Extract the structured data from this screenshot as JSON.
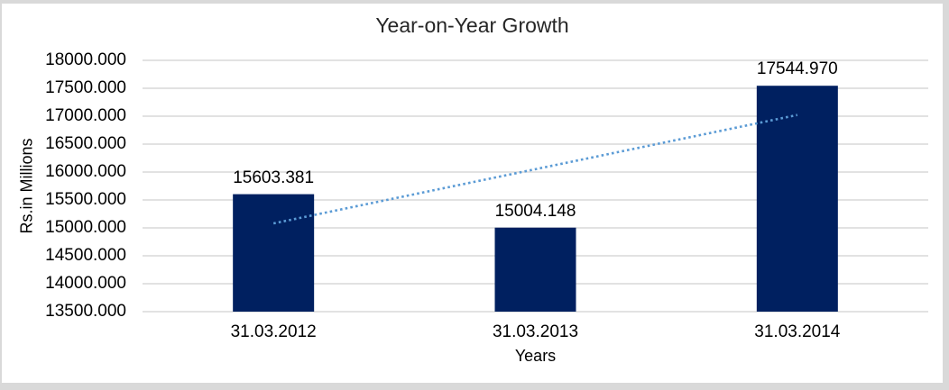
{
  "chart_data": {
    "type": "bar",
    "title": "Year-on-Year Growth",
    "xlabel": "Years",
    "ylabel": "Rs.in Millions",
    "categories": [
      "31.03.2012",
      "31.03.2013",
      "31.03.2014"
    ],
    "values": [
      15603.381,
      15004.148,
      17544.97
    ],
    "data_labels": [
      "15603.381",
      "15004.148",
      "17544.970"
    ],
    "ylim": [
      13500,
      18000
    ],
    "ytick_step": 500,
    "ytick_labels": [
      "18000.000",
      "17500.000",
      "17000.000",
      "16500.000",
      "16000.000",
      "15500.000",
      "15000.000",
      "14500.000",
      "14000.000",
      "13500.000"
    ],
    "grid": true,
    "legend": "none",
    "trendline": {
      "type": "linear",
      "style": "dotted",
      "color": "#5B9BD5",
      "start_value": 15080.04,
      "end_value": 17021.63
    },
    "colors": {
      "bar": "#002060",
      "gridline": "#D9D9D9",
      "text": "#000000",
      "frame_border": "#D9D9D9",
      "background": "#FFFFFF"
    }
  }
}
